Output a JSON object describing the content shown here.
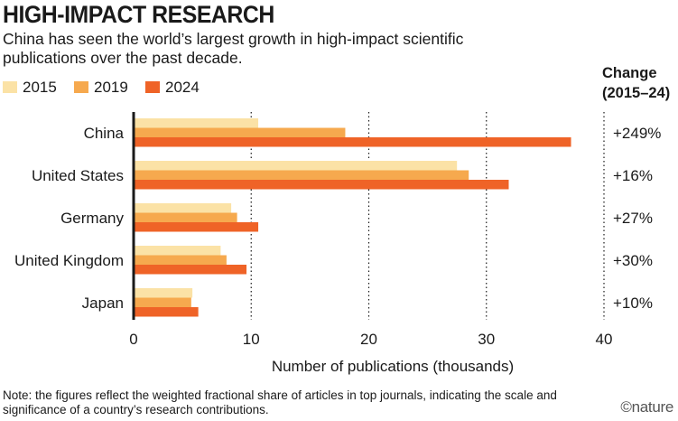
{
  "title": "HIGH-IMPACT RESEARCH",
  "subtitle": "China has seen the world’s largest growth in high-impact scientific publications over the past decade.",
  "note": "Note: the figures reflect the weighted fractional share of articles in top journals, indicating the scale and significance of a country’s research contributions.",
  "logo": "©nature",
  "colors": {
    "2015": "#fbe2a6",
    "2019": "#f6a94e",
    "2024": "#ef6327",
    "text": "#1a1a1a",
    "grid": "#1a1a1a"
  },
  "chart_data": {
    "type": "bar",
    "orientation": "horizontal",
    "categories": [
      "China",
      "United States",
      "Germany",
      "United Kingdom",
      "Japan"
    ],
    "series": [
      {
        "name": "2015",
        "values": [
          10.6,
          27.5,
          8.3,
          7.4,
          5.0
        ]
      },
      {
        "name": "2019",
        "values": [
          18.0,
          28.5,
          8.8,
          7.9,
          4.9
        ]
      },
      {
        "name": "2024",
        "values": [
          37.2,
          31.9,
          10.6,
          9.6,
          5.5
        ]
      }
    ],
    "xlabel": "Number of publications (thousands)",
    "xlim": [
      0,
      40
    ],
    "xticks": [
      "0",
      "10",
      "20",
      "30",
      "40"
    ],
    "grid": "vertical dotted",
    "legend_position": "top-left",
    "change_header": [
      "Change",
      "(2015–24)"
    ],
    "change_values": [
      "+249%",
      "+16%",
      "+27%",
      "+30%",
      "+10%"
    ]
  }
}
